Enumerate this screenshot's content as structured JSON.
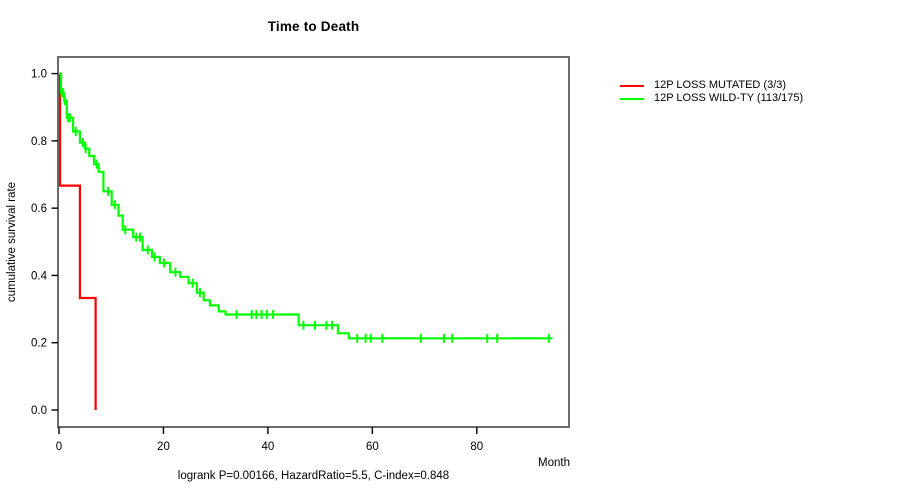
{
  "title": "Time to Death",
  "x_axis_label": "Month",
  "y_axis_label": "cumulative survival rate",
  "footer": "logrank P=0.00166, HazardRatio=5.5, C-index=0.848",
  "legend": {
    "items": [
      {
        "label": "12P LOSS MUTATED (3/3)",
        "color": "#ff0000"
      },
      {
        "label": "12P LOSS WILD-TY (113/175)",
        "color": "#00ff00"
      }
    ]
  },
  "chart_data": {
    "type": "line",
    "subtype": "kaplan-meier-step-survival",
    "title": "Time to Death",
    "xlabel": "Month",
    "ylabel": "cumulative survival rate",
    "annotation": "logrank P=0.00166, HazardRatio=5.5, C-index=0.848",
    "xlim": [
      0,
      97
    ],
    "ylim": [
      0.0,
      1.0
    ],
    "x_ticks": [
      0,
      20,
      40,
      60,
      80
    ],
    "x_tick_labels": [
      "0",
      "20",
      "40",
      "60",
      "80"
    ],
    "y_ticks": [
      0.0,
      0.2,
      0.4,
      0.6,
      0.8,
      1.0
    ],
    "y_tick_labels": [
      "0.0",
      "0.2",
      "0.4",
      "0.6",
      "0.8",
      "1.0"
    ],
    "grid": false,
    "legend_position": "right-outside",
    "box_color": "#6b6b6b",
    "series": [
      {
        "id": "mutated",
        "name": "12P LOSS MUTATED (3/3)",
        "color": "#ff0000",
        "steps": [
          [
            0,
            1.0
          ],
          [
            0.2,
            0.667
          ],
          [
            4.0,
            0.333
          ],
          [
            7.0,
            0.0
          ]
        ],
        "censor_times": []
      },
      {
        "id": "wild-type",
        "name": "12P LOSS WILD-TY (113/175)",
        "color": "#00ff00",
        "steps": [
          [
            0,
            1.0
          ],
          [
            0.4,
            0.943
          ],
          [
            1.0,
            0.92
          ],
          [
            1.5,
            0.869
          ],
          [
            2.7,
            0.828
          ],
          [
            4.0,
            0.795
          ],
          [
            5.0,
            0.777
          ],
          [
            5.8,
            0.755
          ],
          [
            6.7,
            0.731
          ],
          [
            7.6,
            0.708
          ],
          [
            8.5,
            0.65
          ],
          [
            10.1,
            0.61
          ],
          [
            11.4,
            0.578
          ],
          [
            12.2,
            0.536
          ],
          [
            14.2,
            0.514
          ],
          [
            16.0,
            0.476
          ],
          [
            17.8,
            0.455
          ],
          [
            19.3,
            0.437
          ],
          [
            21.3,
            0.41
          ],
          [
            23.2,
            0.396
          ],
          [
            24.8,
            0.377
          ],
          [
            26.4,
            0.349
          ],
          [
            27.7,
            0.326
          ],
          [
            28.9,
            0.311
          ],
          [
            30.6,
            0.293
          ],
          [
            31.9,
            0.284
          ],
          [
            45.9,
            0.252
          ],
          [
            53.4,
            0.228
          ],
          [
            55.5,
            0.213
          ],
          [
            94.5,
            0.213
          ]
        ],
        "censor_times": [
          0.5,
          0.8,
          1.1,
          1.7,
          2.1,
          3.2,
          4.6,
          5.1,
          7.2,
          9.4,
          10.7,
          12.7,
          14.8,
          15.5,
          17.0,
          18.3,
          20.1,
          22.3,
          25.6,
          27.0,
          34.0,
          36.9,
          37.8,
          38.8,
          39.8,
          41.0,
          46.8,
          49.0,
          51.2,
          52.3,
          57.1,
          58.7,
          59.7,
          61.9,
          69.3,
          73.7,
          75.3,
          82.0,
          83.9,
          93.8
        ]
      }
    ]
  }
}
